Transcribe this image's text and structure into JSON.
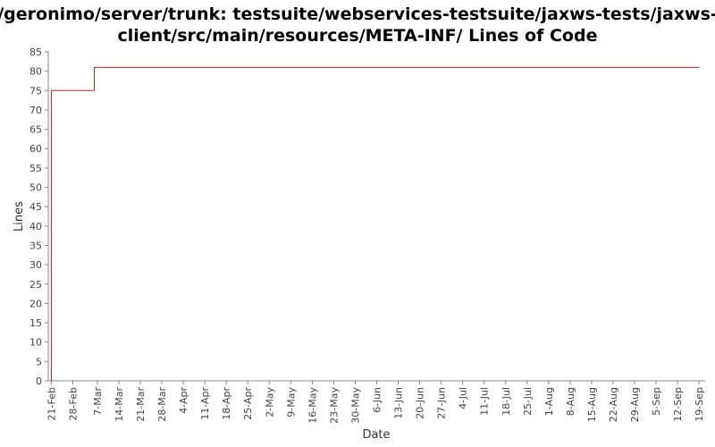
{
  "chart_data": {
    "type": "line",
    "title_lines": [
      "/geronimo/server/trunk: testsuite/webservices-testsuite/jaxws-tests/jaxws-",
      "client/src/main/resources/META-INF/ Lines of Code"
    ],
    "xlabel": "Date",
    "ylabel": "Lines",
    "ylim": [
      0,
      85
    ],
    "yticks": [
      0,
      5,
      10,
      15,
      20,
      25,
      30,
      35,
      40,
      45,
      50,
      55,
      60,
      65,
      70,
      75,
      80,
      85
    ],
    "xticks": [
      "21-Feb",
      "28-Feb",
      "7-Mar",
      "14-Mar",
      "21-Mar",
      "28-Mar",
      "4-Apr",
      "11-Apr",
      "18-Apr",
      "25-Apr",
      "2-May",
      "9-May",
      "16-May",
      "23-May",
      "30-May",
      "6-Jun",
      "13-Jun",
      "20-Jun",
      "27-Jun",
      "4-Jul",
      "11-Jul",
      "18-Jul",
      "25-Jul",
      "1-Aug",
      "8-Aug",
      "15-Aug",
      "22-Aug",
      "29-Aug",
      "5-Sep",
      "12-Sep",
      "19-Sep"
    ],
    "xlim": [
      "20-Feb",
      "21-Sep"
    ],
    "grid": false,
    "line_style": "step",
    "series": [
      {
        "color": "#b22222",
        "points": [
          {
            "x": "21-Feb",
            "y": 0
          },
          {
            "x": "21-Feb",
            "y": 75
          },
          {
            "x": "6-Mar",
            "y": 81
          },
          {
            "x": "19-Sep",
            "y": 81
          }
        ]
      }
    ]
  }
}
